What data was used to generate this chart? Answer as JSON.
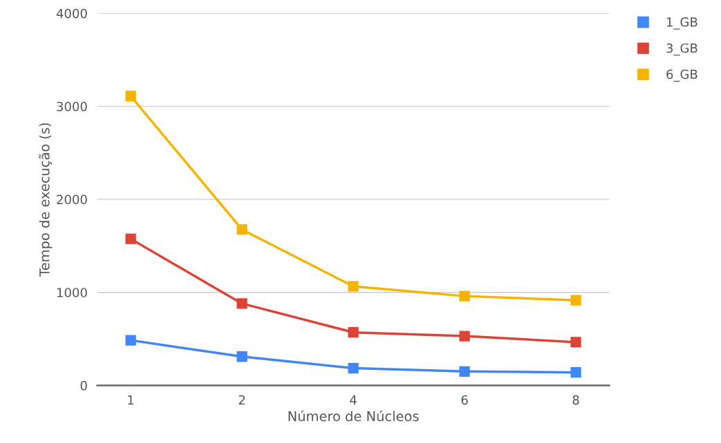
{
  "chart_data": {
    "type": "line",
    "xlabel": "Número de Núcleos",
    "ylabel": "Tempo de execução (s)",
    "categories": [
      "1",
      "2",
      "4",
      "6",
      "8"
    ],
    "series": [
      {
        "name": "1_GB",
        "color": "#4285f4",
        "values": [
          485,
          310,
          185,
          150,
          140
        ]
      },
      {
        "name": "3_GB",
        "color": "#db4437",
        "values": [
          1575,
          880,
          570,
          530,
          465
        ]
      },
      {
        "name": "6_GB",
        "color": "#f4b400",
        "values": [
          3110,
          1675,
          1065,
          960,
          915
        ]
      }
    ],
    "ylim": [
      0,
      4000
    ],
    "yticks": [
      0,
      1000,
      2000,
      3000,
      4000
    ],
    "grid": "y",
    "legend": "top right",
    "marker": "square",
    "line_style": "solid"
  }
}
